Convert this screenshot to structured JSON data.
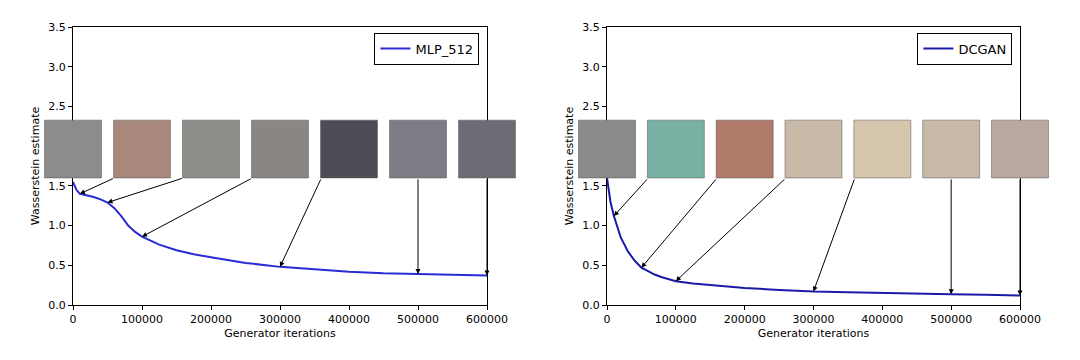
{
  "chart_data": [
    {
      "type": "line",
      "x_label": "Generator iterations",
      "y_label": "Wasserstein estimate",
      "x": [
        0,
        5000,
        10000,
        20000,
        30000,
        40000,
        50000,
        60000,
        70000,
        80000,
        90000,
        100000,
        125000,
        150000,
        175000,
        200000,
        250000,
        300000,
        350000,
        400000,
        450000,
        500000,
        550000,
        600000
      ],
      "series": [
        {
          "name": "MLP_512",
          "color": "#2b2bd6",
          "values": [
            1.55,
            1.45,
            1.4,
            1.38,
            1.36,
            1.33,
            1.29,
            1.22,
            1.12,
            1.0,
            0.92,
            0.86,
            0.76,
            0.69,
            0.64,
            0.6,
            0.53,
            0.48,
            0.45,
            0.42,
            0.4,
            0.39,
            0.38,
            0.37
          ]
        }
      ],
      "sample_iterations": [
        10000,
        50000,
        100000,
        300000,
        500000,
        600000
      ],
      "xlim": [
        0,
        600000
      ],
      "ylim": [
        0,
        3.5
      ],
      "xticks": [
        0,
        100000,
        200000,
        300000,
        400000,
        500000,
        600000
      ],
      "yticks": [
        {
          "value": 0,
          "label": "0.0"
        },
        {
          "value": 0.5,
          "label": "0.5"
        },
        {
          "value": 1,
          "label": "1.0"
        },
        {
          "value": 1.5,
          "label": "1.5"
        },
        {
          "value": 2,
          "label": "2.0"
        },
        {
          "value": 2.5,
          "label": "2.5"
        },
        {
          "value": 3,
          "label": "3.0"
        },
        {
          "value": 3.5,
          "label": "3.5"
        }
      ],
      "legend": "upper right",
      "grid": false
    },
    {
      "type": "line",
      "x_label": "Generator iterations",
      "y_label": "Wasserstein estimate",
      "x": [
        0,
        5000,
        10000,
        20000,
        30000,
        40000,
        50000,
        60000,
        70000,
        80000,
        90000,
        100000,
        125000,
        150000,
        175000,
        200000,
        250000,
        300000,
        350000,
        400000,
        450000,
        500000,
        550000,
        600000
      ],
      "series": [
        {
          "name": "DCGAN",
          "color": "#1a1aa8",
          "values": [
            1.6,
            1.3,
            1.12,
            0.85,
            0.68,
            0.56,
            0.47,
            0.42,
            0.38,
            0.35,
            0.32,
            0.3,
            0.27,
            0.25,
            0.23,
            0.215,
            0.19,
            0.17,
            0.16,
            0.15,
            0.14,
            0.135,
            0.13,
            0.12
          ]
        }
      ],
      "sample_iterations": [
        10000,
        50000,
        100000,
        300000,
        500000,
        600000
      ],
      "xlim": [
        0,
        600000
      ],
      "ylim": [
        0,
        3.5
      ],
      "xticks": [
        0,
        100000,
        200000,
        300000,
        400000,
        500000,
        600000
      ],
      "yticks": [
        {
          "value": 0,
          "label": "0.0"
        },
        {
          "value": 0.5,
          "label": "0.5"
        },
        {
          "value": 1,
          "label": "1.0"
        },
        {
          "value": 1.5,
          "label": "1.5"
        },
        {
          "value": 2,
          "label": "2.0"
        },
        {
          "value": 2.5,
          "label": "2.5"
        },
        {
          "value": 3,
          "label": "3.0"
        },
        {
          "value": 3.5,
          "label": "3.5"
        }
      ],
      "legend": "upper right",
      "grid": false
    }
  ]
}
